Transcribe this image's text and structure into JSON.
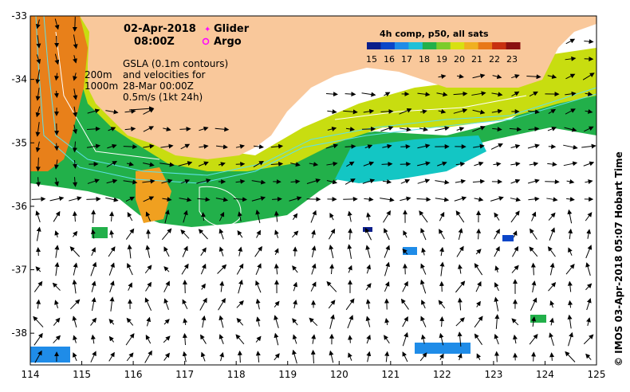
{
  "map": {
    "lon_range": [
      114,
      125
    ],
    "lat_range": [
      -38.5,
      -33
    ],
    "lon_ticks": [
      "114",
      "115",
      "116",
      "117",
      "118",
      "119",
      "120",
      "121",
      "122",
      "123",
      "124",
      "125"
    ],
    "lat_ticks": [
      "-33",
      "-34",
      "-35",
      "-36",
      "-37",
      "-38"
    ],
    "land_color": "#f9c89b",
    "warm_color": "#e8801a",
    "mid_color": "#c8dd10",
    "cool_color": "#1fa63e",
    "cold_color": "#13c6c4"
  },
  "title": {
    "date": "02-Apr-2018",
    "time": "08:00Z"
  },
  "legend": {
    "glider": "Glider",
    "argo": "Argo",
    "glider_color": "#ff00ff",
    "argo_color": "#ff00ff"
  },
  "contours": {
    "isobath1": "200m",
    "isobath2": "1000m",
    "isobath_color": "#5fe0e8"
  },
  "gsla": {
    "line1": "GSLA (0.1m contours)",
    "line2": "and velocities for",
    "line3": "28-Mar 00:00Z",
    "line4": "0.5m/s (1kt 24h)"
  },
  "colorbar": {
    "title": "4h comp, p50, all sats",
    "labels": [
      "15",
      "16",
      "17",
      "18",
      "19",
      "20",
      "21",
      "22",
      "23"
    ],
    "colors": [
      "#0b1e8a",
      "#0b46c8",
      "#1f8ce8",
      "#1fc0d8",
      "#22b04a",
      "#7ccc2a",
      "#d8e010",
      "#f0b020",
      "#e87818",
      "#c83010",
      "#8a1010"
    ]
  },
  "credit": "© IMOS 03-Apr-2018 05:07 Hobart Time"
}
